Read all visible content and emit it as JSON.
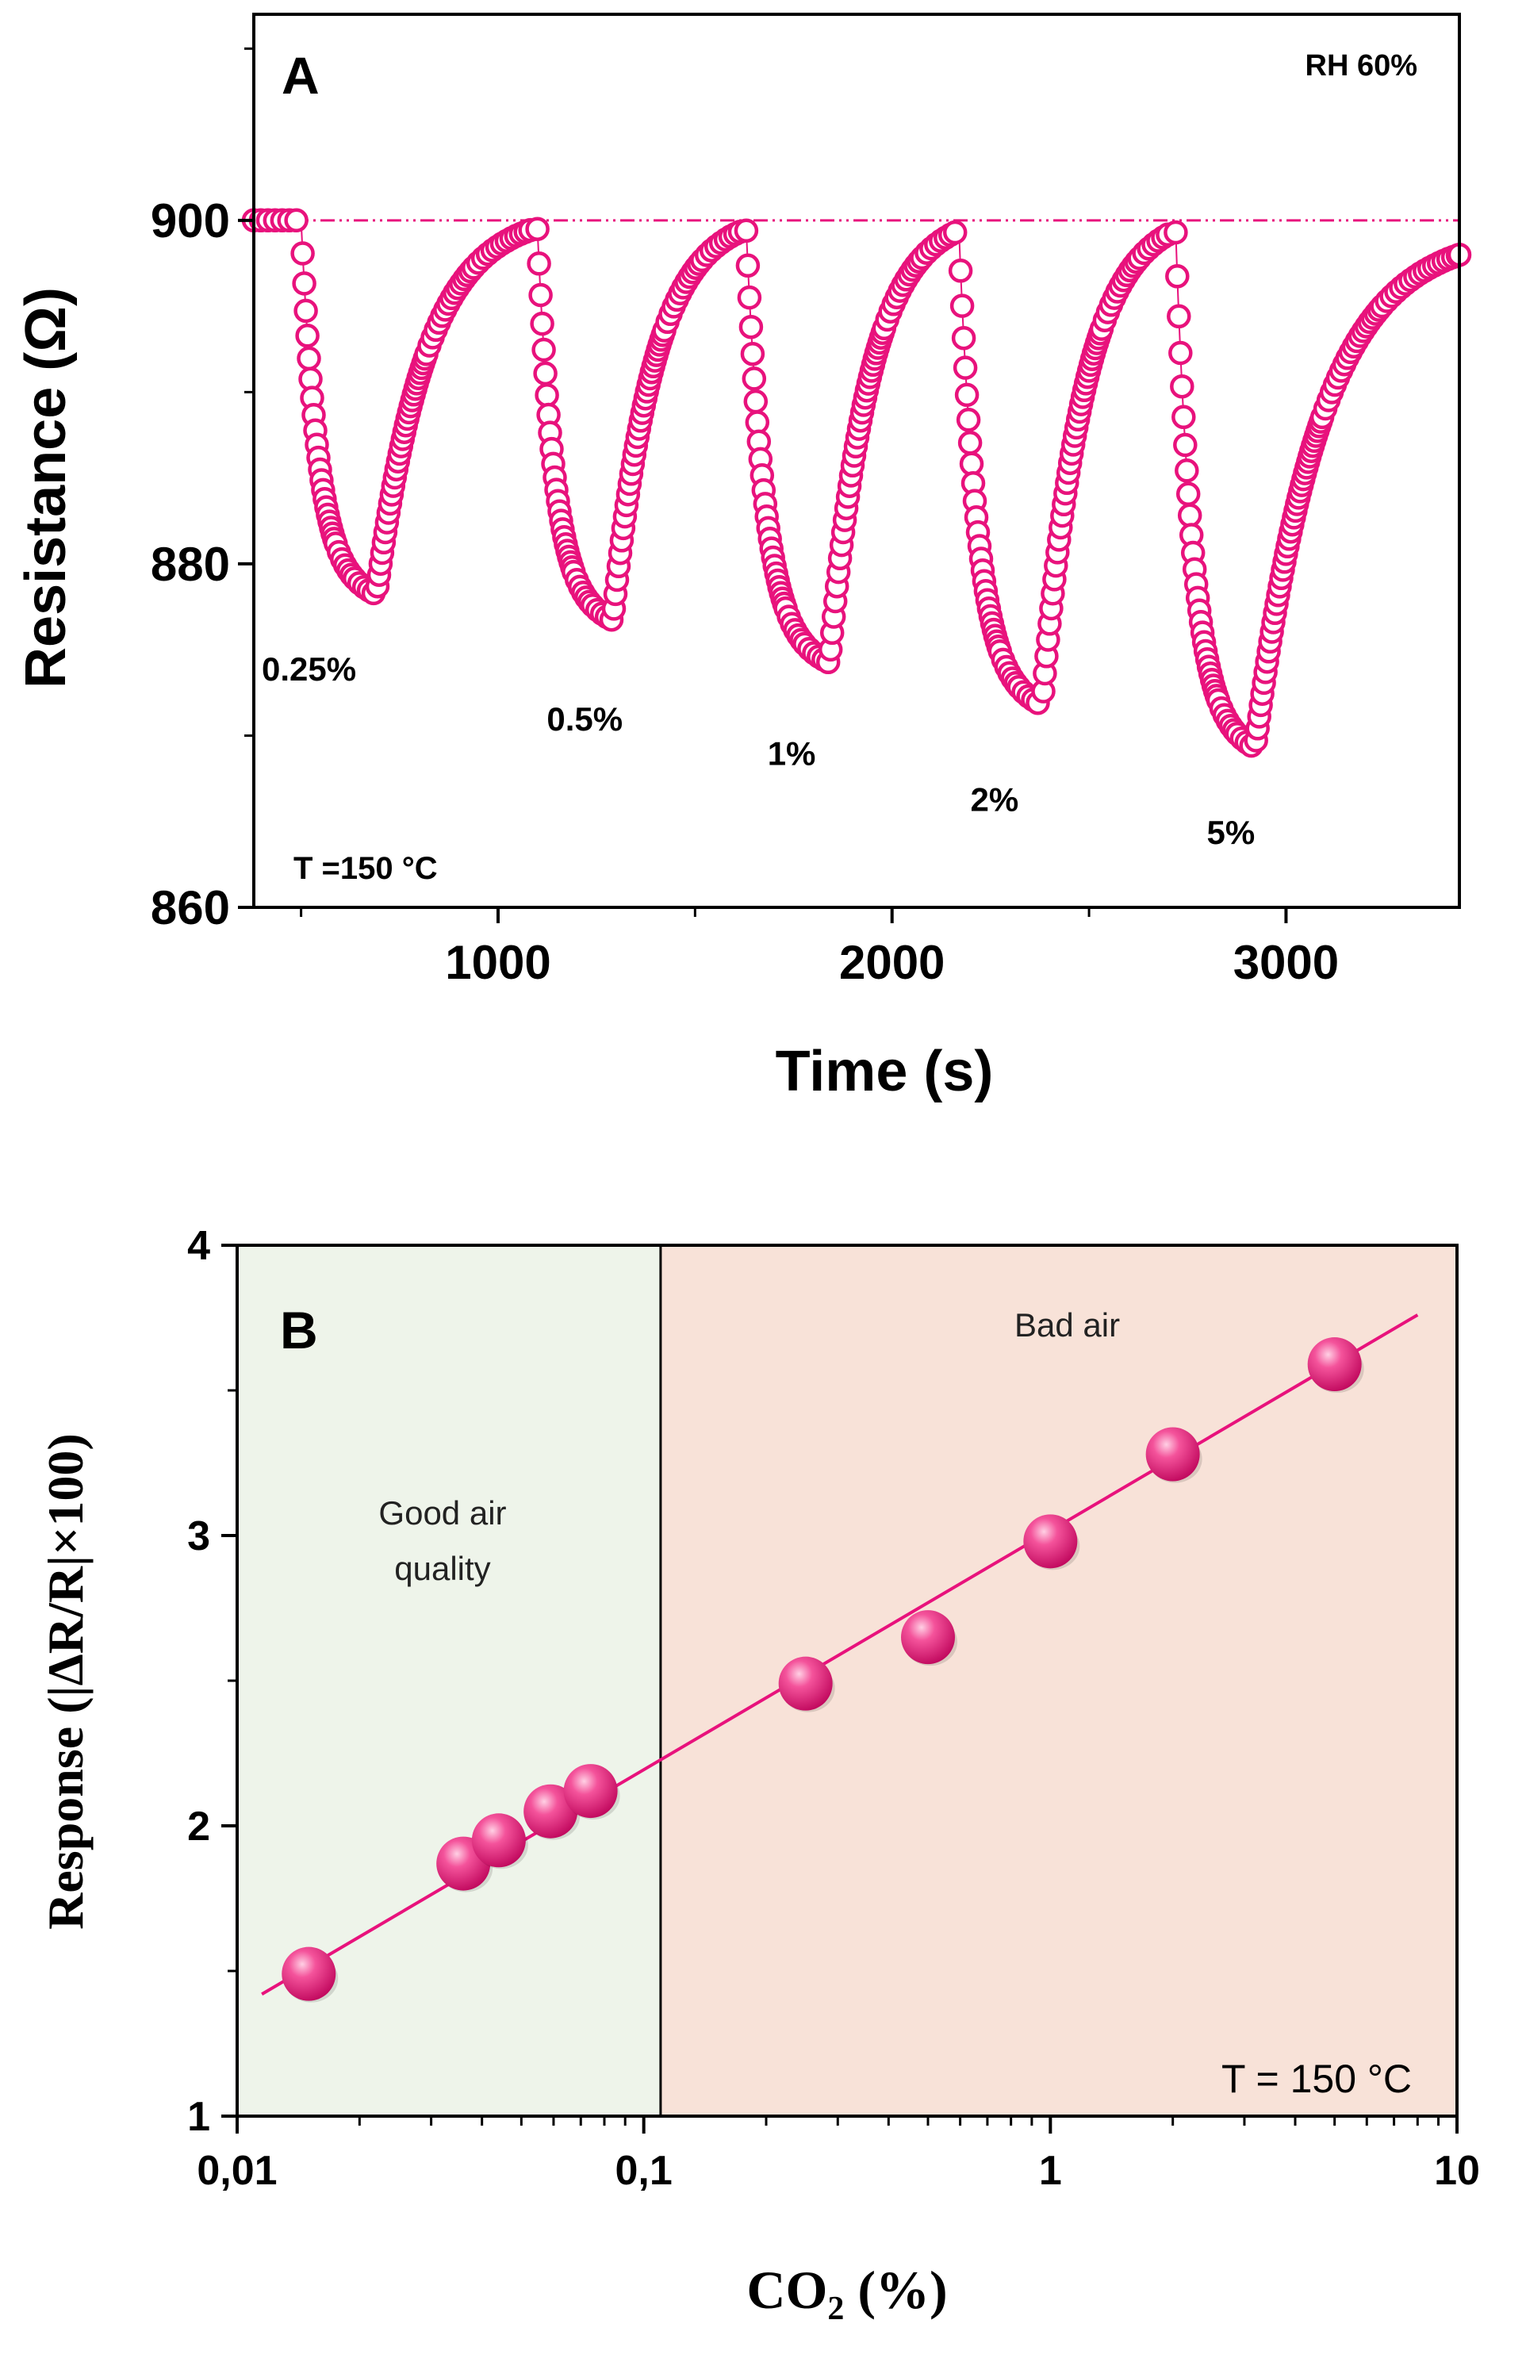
{
  "chart_data": [
    {
      "id": "A",
      "type": "line",
      "panel_label": "A",
      "xlabel": "Time (s)",
      "ylabel": "Resistance (Ω)",
      "xlim": [
        380,
        3440
      ],
      "ylim": [
        860,
        912
      ],
      "x_ticks": [
        1000,
        2000,
        3000
      ],
      "x_tick_labels": [
        "1000",
        "2000",
        "3000"
      ],
      "y_ticks": [
        860,
        880,
        900
      ],
      "y_tick_labels": [
        "860",
        "880",
        "900"
      ],
      "baseline": 900,
      "marker": "open-circle",
      "color": "#e8127c",
      "annotations": {
        "rh": "RH 60%",
        "temperature": "T =150 °C",
        "concentrations": [
          "0.25%",
          "0.5%",
          "1%",
          "2%",
          "5%"
        ]
      },
      "label_positions": [
        {
          "text": "0.25%",
          "x": 520,
          "y": 873.2
        },
        {
          "text": "0.5%",
          "x": 1220,
          "y": 870.3
        },
        {
          "text": "1%",
          "x": 1745,
          "y": 868.3
        },
        {
          "text": "2%",
          "x": 2260,
          "y": 865.6
        },
        {
          "text": "5%",
          "x": 2860,
          "y": 863.7
        }
      ],
      "series": [
        {
          "name": "Resistance",
          "cycles": [
            {
              "concentration": "0.25%",
              "on": 500,
              "off": 690,
              "start": 900,
              "min": 878,
              "end_x": 1090,
              "end": 899.5
            },
            {
              "concentration": "0.5%",
              "on": 1100,
              "off": 1290,
              "start": 899.5,
              "min": 876.5,
              "end_x": 1620,
              "end": 899.4
            },
            {
              "concentration": "1%",
              "on": 1630,
              "off": 1840,
              "start": 899.4,
              "min": 874,
              "end_x": 2160,
              "end": 899.3
            },
            {
              "concentration": "2%",
              "on": 2170,
              "off": 2380,
              "start": 899.3,
              "min": 871.5,
              "end_x": 2710,
              "end": 899.3
            },
            {
              "concentration": "5%",
              "on": 2720,
              "off": 2920,
              "start": 899.3,
              "min": 869,
              "end_x": 3440,
              "end": 898
            }
          ]
        }
      ]
    },
    {
      "id": "B",
      "type": "scatter",
      "panel_label": "B",
      "xscale": "log",
      "xlabel": "CO2 (%)",
      "xlabel_main": "CO",
      "xlabel_sub": "2",
      "xlabel_tail": " (%)",
      "ylabel": "Response (|ΔR/R|×100)",
      "xlim": [
        0.01,
        10
      ],
      "ylim": [
        1,
        4
      ],
      "x_ticks": [
        0.01,
        0.1,
        1,
        10
      ],
      "x_tick_labels": [
        "0,01",
        "0,1",
        "1",
        "10"
      ],
      "y_ticks": [
        1,
        2,
        3,
        4
      ],
      "y_tick_labels": [
        "1",
        "2",
        "3",
        "4"
      ],
      "threshold": 0.11,
      "regions": [
        {
          "name": "Good air quality",
          "from": 0.01,
          "to": 0.11,
          "color": "#eef4ea",
          "lines": [
            "Good air",
            "quality"
          ]
        },
        {
          "name": "Bad air",
          "from": 0.11,
          "to": 10,
          "color": "#f8e2d8",
          "lines": [
            "Bad  air"
          ]
        }
      ],
      "temperature": "T = 150 °C",
      "color": "#e8127c",
      "x": [
        0.015,
        0.036,
        0.044,
        0.059,
        0.074,
        0.25,
        0.5,
        1.0,
        2.0,
        5.0
      ],
      "y": [
        1.49,
        1.87,
        1.95,
        2.05,
        2.12,
        2.49,
        2.65,
        2.98,
        3.28,
        3.59
      ],
      "fit": {
        "x": [
          0.0115,
          8.0
        ],
        "y": [
          1.42,
          3.76
        ]
      }
    }
  ]
}
